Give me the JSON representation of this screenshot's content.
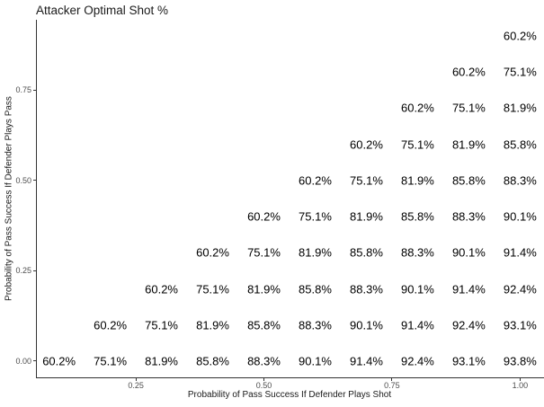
{
  "chart_data": {
    "type": "scatter",
    "title": "Attacker Optimal Shot %",
    "xlabel": "Probability of Pass Success If Defender Plays Shot",
    "ylabel": "Probability of Pass Success If Defender Plays Pass",
    "xlim": [
      0.055,
      1.045
    ],
    "ylim": [
      -0.045,
      0.945
    ],
    "grid": "off",
    "legend": "none",
    "background": "#ffffff",
    "colors": {
      "label_text": "#000000",
      "tick_text": "#4d4d4d",
      "axis_line": "#333333",
      "title_text": "#1a1a1a"
    },
    "x_ticks": [
      {
        "value": 0.25,
        "label": "0.25"
      },
      {
        "value": 0.5,
        "label": "0.50"
      },
      {
        "value": 0.75,
        "label": "0.75"
      },
      {
        "value": 1.0,
        "label": "1.00"
      }
    ],
    "y_ticks": [
      {
        "value": 0.0,
        "label": "0.00"
      },
      {
        "value": 0.25,
        "label": "0.25"
      },
      {
        "value": 0.5,
        "label": "0.50"
      },
      {
        "value": 0.75,
        "label": "0.75"
      }
    ],
    "label_rows": [
      {
        "y": 0.0,
        "x_start": 0.1,
        "x_step": 0.1,
        "labels": [
          "60.2%",
          "75.1%",
          "81.9%",
          "85.8%",
          "88.3%",
          "90.1%",
          "91.4%",
          "92.4%",
          "93.1%",
          "93.8%"
        ]
      },
      {
        "y": 0.1,
        "x_start": 0.2,
        "x_step": 0.1,
        "labels": [
          "60.2%",
          "75.1%",
          "81.9%",
          "85.8%",
          "88.3%",
          "90.1%",
          "91.4%",
          "92.4%",
          "93.1%"
        ]
      },
      {
        "y": 0.2,
        "x_start": 0.3,
        "x_step": 0.1,
        "labels": [
          "60.2%",
          "75.1%",
          "81.9%",
          "85.8%",
          "88.3%",
          "90.1%",
          "91.4%",
          "92.4%"
        ]
      },
      {
        "y": 0.3,
        "x_start": 0.4,
        "x_step": 0.1,
        "labels": [
          "60.2%",
          "75.1%",
          "81.9%",
          "85.8%",
          "88.3%",
          "90.1%",
          "91.4%"
        ]
      },
      {
        "y": 0.4,
        "x_start": 0.5,
        "x_step": 0.1,
        "labels": [
          "60.2%",
          "75.1%",
          "81.9%",
          "85.8%",
          "88.3%",
          "90.1%"
        ]
      },
      {
        "y": 0.5,
        "x_start": 0.6,
        "x_step": 0.1,
        "labels": [
          "60.2%",
          "75.1%",
          "81.9%",
          "85.8%",
          "88.3%"
        ]
      },
      {
        "y": 0.6,
        "x_start": 0.7,
        "x_step": 0.1,
        "labels": [
          "60.2%",
          "75.1%",
          "81.9%",
          "85.8%"
        ]
      },
      {
        "y": 0.7,
        "x_start": 0.8,
        "x_step": 0.1,
        "labels": [
          "60.2%",
          "75.1%",
          "81.9%"
        ]
      },
      {
        "y": 0.8,
        "x_start": 0.9,
        "x_step": 0.1,
        "labels": [
          "60.2%",
          "75.1%"
        ]
      },
      {
        "y": 0.9,
        "x_start": 1.0,
        "x_step": 0.1,
        "labels": [
          "60.2%"
        ]
      }
    ]
  }
}
